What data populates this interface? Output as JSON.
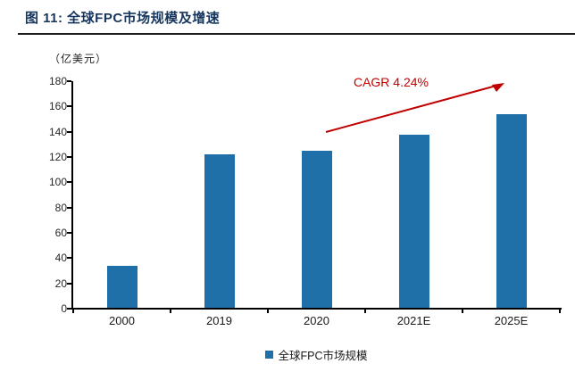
{
  "figure": {
    "title": "图 11: 全球FPC市场规模及增速",
    "unit_label": "（亿美元）"
  },
  "colors": {
    "title_navy": "#17365D",
    "bar_blue": "#1F6FA8",
    "annotation_red": "#C00000",
    "axis_black": "#000000"
  },
  "chart_data": {
    "type": "bar",
    "title": "图 11: 全球FPC市场规模及增速",
    "ylabel": "（亿美元）",
    "xlabel": "",
    "categories": [
      "2000",
      "2019",
      "2020",
      "2021E",
      "2025E"
    ],
    "values": [
      34,
      122,
      125,
      138,
      154
    ],
    "series_name": "全球FPC市场规模",
    "ylim": [
      0,
      180
    ],
    "yticks": [
      0,
      20,
      40,
      60,
      80,
      100,
      120,
      140,
      160,
      180
    ],
    "grid": false,
    "bar_color": "#1F6FA8",
    "annotation": {
      "text": "CAGR 4.24%",
      "color": "#C00000"
    },
    "legend": {
      "label": "全球FPC市场规模",
      "marker_color": "#1F6FA8",
      "position": "bottom"
    }
  }
}
